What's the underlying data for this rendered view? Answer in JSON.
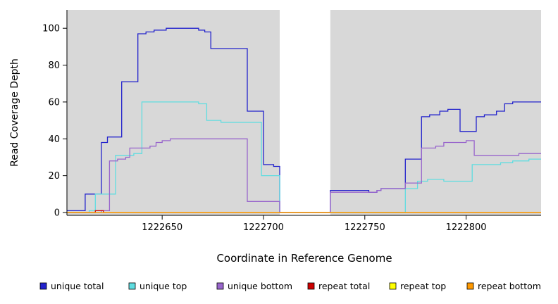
{
  "chart_data": {
    "type": "line",
    "subtype": "step-coverage-plot",
    "title": "",
    "xlabel": "Coordinate in Reference Genome",
    "ylabel": "Read Coverage Depth",
    "xlim": [
      1222603,
      1222837
    ],
    "ylim": [
      0,
      110
    ],
    "x_ticks": [
      1222650,
      1222700,
      1222750,
      1222800
    ],
    "y_ticks": [
      0,
      20,
      40,
      60,
      80,
      100
    ],
    "grid": false,
    "plot_background": "#d8d8d8",
    "gap_region": {
      "x_start": 1222708,
      "x_end": 1222733,
      "color": "#ffffff"
    },
    "legend_position": "bottom",
    "series": [
      {
        "name": "unique total",
        "color": "#2222cc",
        "steps": [
          [
            1222603,
            1
          ],
          [
            1222612,
            10
          ],
          [
            1222620,
            38
          ],
          [
            1222623,
            41
          ],
          [
            1222630,
            71
          ],
          [
            1222638,
            97
          ],
          [
            1222642,
            98
          ],
          [
            1222646,
            99
          ],
          [
            1222652,
            100
          ],
          [
            1222668,
            99
          ],
          [
            1222671,
            98
          ],
          [
            1222674,
            89
          ],
          [
            1222692,
            55
          ],
          [
            1222700,
            26
          ],
          [
            1222705,
            25
          ],
          [
            1222708,
            0
          ],
          [
            1222733,
            12
          ],
          [
            1222752,
            11
          ],
          [
            1222756,
            12
          ],
          [
            1222758,
            13
          ],
          [
            1222770,
            29
          ],
          [
            1222778,
            52
          ],
          [
            1222782,
            53
          ],
          [
            1222787,
            55
          ],
          [
            1222791,
            56
          ],
          [
            1222797,
            44
          ],
          [
            1222805,
            52
          ],
          [
            1222809,
            53
          ],
          [
            1222815,
            55
          ],
          [
            1222819,
            59
          ],
          [
            1222823,
            60
          ]
        ]
      },
      {
        "name": "unique top",
        "color": "#5fdde0",
        "steps": [
          [
            1222603,
            0
          ],
          [
            1222614,
            1
          ],
          [
            1222617,
            10
          ],
          [
            1222627,
            31
          ],
          [
            1222636,
            32
          ],
          [
            1222640,
            60
          ],
          [
            1222668,
            59
          ],
          [
            1222672,
            50
          ],
          [
            1222679,
            49
          ],
          [
            1222699,
            20
          ],
          [
            1222708,
            0
          ],
          [
            1222770,
            13
          ],
          [
            1222776,
            17
          ],
          [
            1222781,
            18
          ],
          [
            1222789,
            17
          ],
          [
            1222803,
            26
          ],
          [
            1222817,
            27
          ],
          [
            1222823,
            28
          ],
          [
            1222831,
            29
          ]
        ]
      },
      {
        "name": "unique bottom",
        "color": "#9966cc",
        "steps": [
          [
            1222603,
            0
          ],
          [
            1222620,
            1
          ],
          [
            1222624,
            28
          ],
          [
            1222628,
            29
          ],
          [
            1222632,
            30
          ],
          [
            1222634,
            35
          ],
          [
            1222644,
            36
          ],
          [
            1222647,
            38
          ],
          [
            1222650,
            39
          ],
          [
            1222654,
            40
          ],
          [
            1222692,
            6
          ],
          [
            1222708,
            0
          ],
          [
            1222733,
            11
          ],
          [
            1222756,
            12
          ],
          [
            1222758,
            13
          ],
          [
            1222770,
            16
          ],
          [
            1222778,
            35
          ],
          [
            1222785,
            36
          ],
          [
            1222789,
            38
          ],
          [
            1222800,
            39
          ],
          [
            1222804,
            31
          ],
          [
            1222826,
            32
          ]
        ]
      },
      {
        "name": "repeat total",
        "color": "#cc0000",
        "steps": [
          [
            1222603,
            0
          ],
          [
            1222617,
            1
          ],
          [
            1222621,
            0
          ]
        ]
      },
      {
        "name": "repeat top",
        "color": "#ffff00",
        "steps": [
          [
            1222603,
            0
          ]
        ]
      },
      {
        "name": "repeat bottom",
        "color": "#ff9900",
        "steps": [
          [
            1222603,
            0
          ]
        ]
      }
    ],
    "legend_items": [
      {
        "label": "unique total",
        "color": "#2222cc"
      },
      {
        "label": "unique top",
        "color": "#5fdde0"
      },
      {
        "label": "unique bottom",
        "color": "#9966cc"
      },
      {
        "label": "repeat total",
        "color": "#cc0000"
      },
      {
        "label": "repeat top",
        "color": "#ffff00"
      },
      {
        "label": "repeat bottom",
        "color": "#ff9900"
      }
    ]
  }
}
